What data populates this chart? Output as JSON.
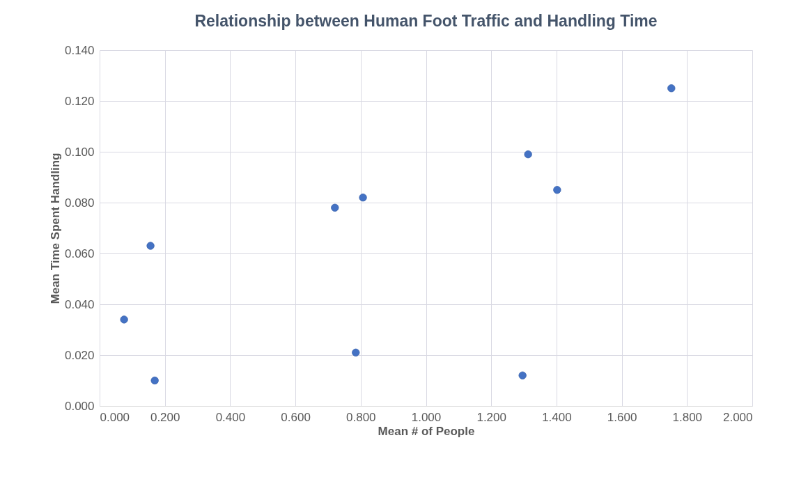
{
  "chart_data": {
    "type": "scatter",
    "title": "Relationship between Human Foot Traffic and Handling Time",
    "xlabel": "Mean # of People",
    "ylabel": "Mean Time Spent Handling",
    "x": [
      0.075,
      0.156,
      0.169,
      0.721,
      0.807,
      0.785,
      1.313,
      1.402,
      1.296,
      1.752
    ],
    "series": [
      {
        "color": "#4472c4",
        "values": [
          0.034,
          0.063,
          0.01,
          0.078,
          0.082,
          0.021,
          0.099,
          0.085,
          0.012,
          0.125
        ]
      }
    ],
    "xlim": [
      0,
      2
    ],
    "ylim": [
      0,
      0.14
    ],
    "xticks": [
      {
        "value": 0,
        "label": "0.000"
      },
      {
        "value": 0.2,
        "label": "0.200"
      },
      {
        "value": 0.4,
        "label": "0.400"
      },
      {
        "value": 0.6,
        "label": "0.600"
      },
      {
        "value": 0.8,
        "label": "0.800"
      },
      {
        "value": 1.0,
        "label": "1.000"
      },
      {
        "value": 1.2,
        "label": "1.200"
      },
      {
        "value": 1.4,
        "label": "1.400"
      },
      {
        "value": 1.6,
        "label": "1.600"
      },
      {
        "value": 1.8,
        "label": "1.800"
      },
      {
        "value": 2.0,
        "label": "2.000"
      }
    ],
    "yticks": [
      {
        "value": 0,
        "label": "0.000"
      },
      {
        "value": 0.02,
        "label": "0.020"
      },
      {
        "value": 0.04,
        "label": "0.040"
      },
      {
        "value": 0.06,
        "label": "0.060"
      },
      {
        "value": 0.08,
        "label": "0.080"
      },
      {
        "value": 0.1,
        "label": "0.100"
      },
      {
        "value": 0.12,
        "label": "0.120"
      },
      {
        "value": 0.14,
        "label": "0.140"
      }
    ],
    "grid": true,
    "marker": "circle"
  }
}
